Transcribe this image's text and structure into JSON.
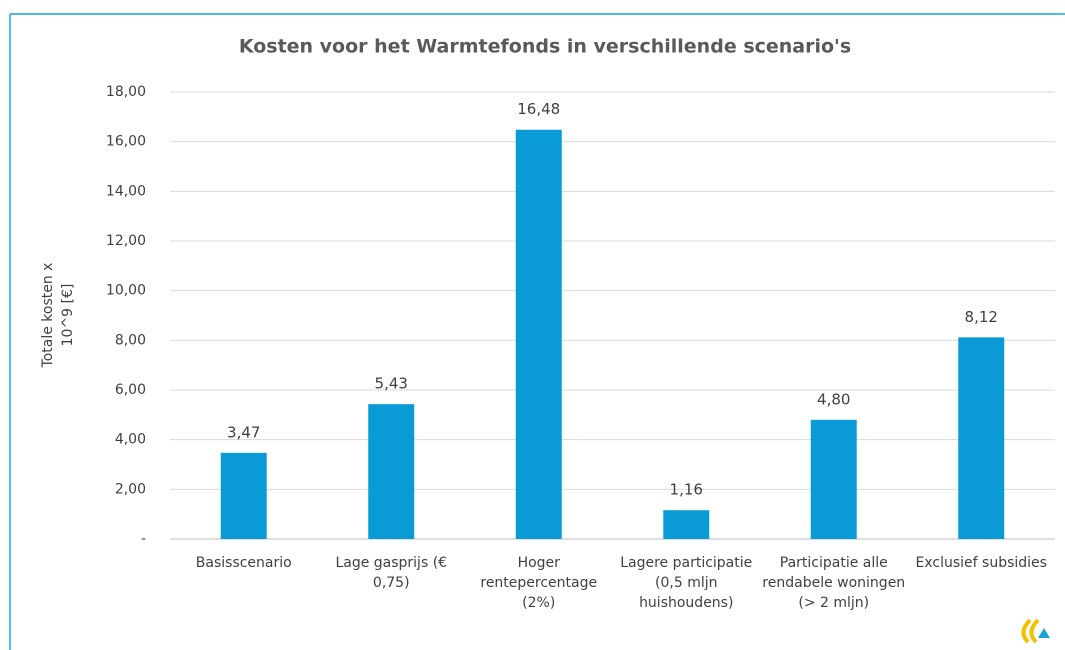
{
  "chart_data": {
    "type": "bar",
    "title": "Kosten voor het Warmtefonds in verschillende scenario's",
    "y_label": "Totale kosten x 10^9 [€]",
    "categories": [
      "Basisscenario",
      "Lage gasprijs (€ 0,75)",
      "Hoger rentepercentage (2%)",
      "Lagere participatie (0,5 mljn huishoudens)",
      "Participatie alle rendabele woningen (> 2 mljn)",
      "Exclusief subsidies"
    ],
    "values": [
      3.47,
      5.43,
      16.48,
      1.16,
      4.8,
      8.12
    ],
    "value_labels": [
      "3,47",
      "5,43",
      "16,48",
      "1,16",
      "4,80",
      "8,12"
    ],
    "color": "#0a9bd7",
    "ylim": [
      0,
      18
    ],
    "yticks": [
      {
        "value": 0,
        "label": "-"
      },
      {
        "value": 2,
        "label": "2,00"
      },
      {
        "value": 4,
        "label": "4,00"
      },
      {
        "value": 6,
        "label": "6,00"
      },
      {
        "value": 8,
        "label": "8,00"
      },
      {
        "value": 10,
        "label": "10,00"
      },
      {
        "value": 12,
        "label": "12,00"
      },
      {
        "value": 14,
        "label": "14,00"
      },
      {
        "value": 16,
        "label": "16,00"
      },
      {
        "value": 18,
        "label": "18,00"
      }
    ],
    "grid": true
  }
}
